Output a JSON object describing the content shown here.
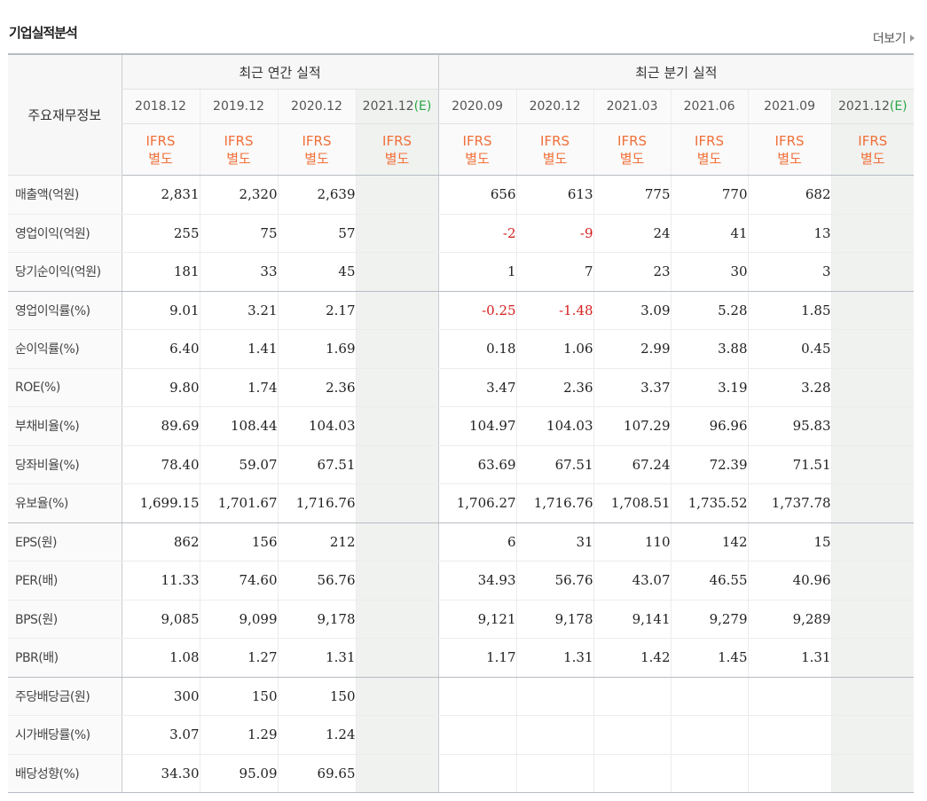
{
  "section": {
    "title": "기업실적분석",
    "more_label": "더보기"
  },
  "header": {
    "row_label": "주요재무정보",
    "annual_title": "최근 연간 실적",
    "quarter_title": "최근 분기 실적",
    "annual_periods": [
      "2018.12",
      "2019.12",
      "2020.12",
      "2021.12"
    ],
    "quarter_periods": [
      "2020.09",
      "2020.12",
      "2021.03",
      "2021.06",
      "2021.09",
      "2021.12"
    ],
    "estimate_tag": "(E)",
    "ifrs_line1": "IFRS",
    "ifrs_line2": "별도"
  },
  "colors": {
    "negative": "#d62020",
    "ifrs": "#f0703a",
    "estimate_tag": "#28a745",
    "estimate_bg": "#f0f2f0"
  },
  "rows": [
    {
      "label": "매출액(억원)",
      "annual": [
        "2,831",
        "2,320",
        "2,639",
        ""
      ],
      "quarter": [
        "656",
        "613",
        "775",
        "770",
        "682",
        ""
      ]
    },
    {
      "label": "영업이익(억원)",
      "annual": [
        "255",
        "75",
        "57",
        ""
      ],
      "quarter": [
        "-2",
        "-9",
        "24",
        "41",
        "13",
        ""
      ]
    },
    {
      "label": "당기순이익(억원)",
      "annual": [
        "181",
        "33",
        "45",
        ""
      ],
      "quarter": [
        "1",
        "7",
        "23",
        "30",
        "3",
        ""
      ]
    },
    {
      "label": "영업이익률(%)",
      "annual": [
        "9.01",
        "3.21",
        "2.17",
        ""
      ],
      "quarter": [
        "-0.25",
        "-1.48",
        "3.09",
        "5.28",
        "1.85",
        ""
      ]
    },
    {
      "label": "순이익률(%)",
      "annual": [
        "6.40",
        "1.41",
        "1.69",
        ""
      ],
      "quarter": [
        "0.18",
        "1.06",
        "2.99",
        "3.88",
        "0.45",
        ""
      ]
    },
    {
      "label": "ROE(%)",
      "annual": [
        "9.80",
        "1.74",
        "2.36",
        ""
      ],
      "quarter": [
        "3.47",
        "2.36",
        "3.37",
        "3.19",
        "3.28",
        ""
      ]
    },
    {
      "label": "부채비율(%)",
      "annual": [
        "89.69",
        "108.44",
        "104.03",
        ""
      ],
      "quarter": [
        "104.97",
        "104.03",
        "107.29",
        "96.96",
        "95.83",
        ""
      ]
    },
    {
      "label": "당좌비율(%)",
      "annual": [
        "78.40",
        "59.07",
        "67.51",
        ""
      ],
      "quarter": [
        "63.69",
        "67.51",
        "67.24",
        "72.39",
        "71.51",
        ""
      ]
    },
    {
      "label": "유보율(%)",
      "annual": [
        "1,699.15",
        "1,701.67",
        "1,716.76",
        ""
      ],
      "quarter": [
        "1,706.27",
        "1,716.76",
        "1,708.51",
        "1,735.52",
        "1,737.78",
        ""
      ]
    },
    {
      "label": "EPS(원)",
      "annual": [
        "862",
        "156",
        "212",
        ""
      ],
      "quarter": [
        "6",
        "31",
        "110",
        "142",
        "15",
        ""
      ]
    },
    {
      "label": "PER(배)",
      "annual": [
        "11.33",
        "74.60",
        "56.76",
        ""
      ],
      "quarter": [
        "34.93",
        "56.76",
        "43.07",
        "46.55",
        "40.96",
        ""
      ]
    },
    {
      "label": "BPS(원)",
      "annual": [
        "9,085",
        "9,099",
        "9,178",
        ""
      ],
      "quarter": [
        "9,121",
        "9,178",
        "9,141",
        "9,279",
        "9,289",
        ""
      ]
    },
    {
      "label": "PBR(배)",
      "annual": [
        "1.08",
        "1.27",
        "1.31",
        ""
      ],
      "quarter": [
        "1.17",
        "1.31",
        "1.42",
        "1.45",
        "1.31",
        ""
      ]
    },
    {
      "label": "주당배당금(원)",
      "annual": [
        "300",
        "150",
        "150",
        ""
      ],
      "quarter": [
        "",
        "",
        "",
        "",
        "",
        ""
      ]
    },
    {
      "label": "시가배당률(%)",
      "annual": [
        "3.07",
        "1.29",
        "1.24",
        ""
      ],
      "quarter": [
        "",
        "",
        "",
        "",
        "",
        ""
      ]
    },
    {
      "label": "배당성향(%)",
      "annual": [
        "34.30",
        "95.09",
        "69.65",
        ""
      ],
      "quarter": [
        "",
        "",
        "",
        "",
        "",
        ""
      ]
    }
  ]
}
